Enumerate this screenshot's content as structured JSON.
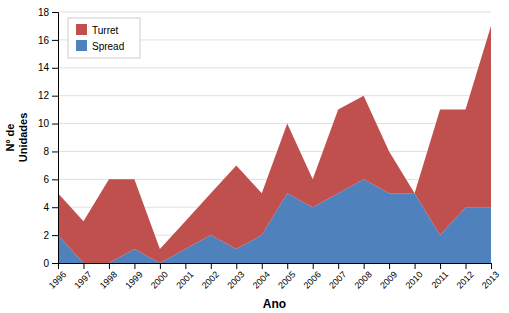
{
  "chart_data": {
    "type": "area",
    "stacked": true,
    "x": [
      1996,
      1997,
      1998,
      1999,
      2000,
      2001,
      2002,
      2003,
      2004,
      2005,
      2006,
      2007,
      2008,
      2009,
      2010,
      2011,
      2012,
      2013
    ],
    "series": [
      {
        "name": "Spread",
        "color": "#4f81bd",
        "values": [
          2,
          0,
          0,
          1,
          0,
          1,
          2,
          1,
          2,
          5,
          4,
          5,
          6,
          5,
          5,
          2,
          4,
          4
        ]
      },
      {
        "name": "Turret",
        "color": "#c0504d",
        "values": [
          3,
          3,
          6,
          5,
          1,
          2,
          3,
          6,
          3,
          5,
          2,
          6,
          6,
          3,
          0,
          9,
          7,
          13
        ]
      }
    ],
    "xlabel": "Ano",
    "ylabel": "Nº de\nUnidades",
    "xlim": [
      1996,
      2013
    ],
    "xticks": [
      1996,
      1997,
      1998,
      1999,
      2000,
      2001,
      2002,
      2003,
      2004,
      2005,
      2006,
      2007,
      2008,
      2009,
      2010,
      2011,
      2012,
      2013
    ],
    "ylim": [
      0,
      18
    ],
    "yticks": [
      0,
      2,
      4,
      6,
      8,
      10,
      12,
      14,
      16,
      18
    ],
    "grid": true,
    "legend": "upper left"
  }
}
